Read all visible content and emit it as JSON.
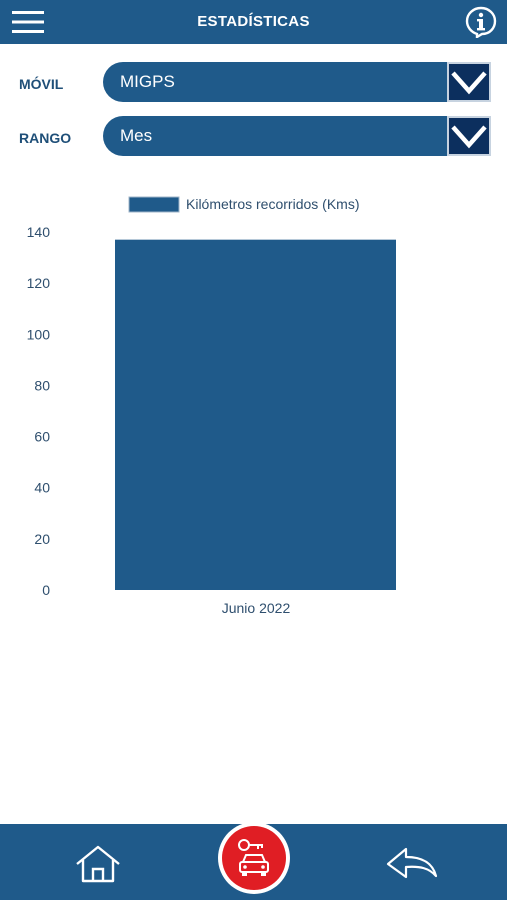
{
  "header": {
    "title": "ESTADÍSTICAS"
  },
  "filters": {
    "movil": {
      "label": "MÓVIL",
      "value": "MIGPS"
    },
    "rango": {
      "label": "RANGO",
      "value": "Mes"
    }
  },
  "colors": {
    "primary": "#1f5a8a",
    "dropdown_arrow_bg": "#0c2f5e",
    "bar": "#1f5a8a",
    "accent_red": "#e01e24",
    "label_text": "#1f4f78"
  },
  "icons": {
    "menu": "hamburger-icon",
    "info": "info-icon",
    "dropdown": "chevron-down-icon",
    "home": "home-icon",
    "vehicle": "car-key-icon",
    "back": "back-arrow-icon"
  },
  "chart_data": {
    "type": "bar",
    "categories": [
      "Junio 2022"
    ],
    "series": [
      {
        "name": "Kilómetros recorridos (Kms)",
        "values": [
          137
        ]
      }
    ],
    "ylim": [
      0,
      140
    ],
    "yticks": [
      0,
      20,
      40,
      60,
      80,
      100,
      120,
      140
    ],
    "legend": "top",
    "grid": false
  }
}
